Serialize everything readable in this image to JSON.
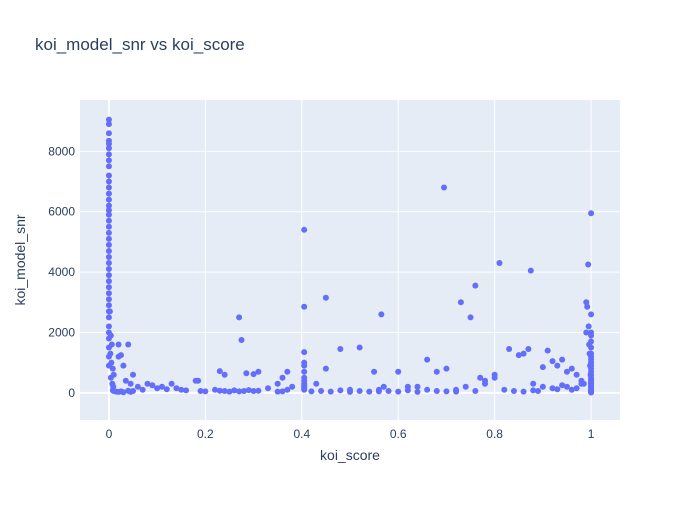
{
  "chart_data": {
    "type": "scatter",
    "title": "koi_model_snr vs koi_score",
    "xlabel": "koi_score",
    "ylabel": "koi_model_snr",
    "xlim": [
      -0.06,
      1.06
    ],
    "ylim": [
      -900,
      9700
    ],
    "xticks": [
      0,
      0.2,
      0.4,
      0.6,
      0.8,
      1
    ],
    "xtick_labels": [
      "0",
      "0.2",
      "0.4",
      "0.6",
      "0.8",
      "1"
    ],
    "yticks": [
      0,
      2000,
      4000,
      6000,
      8000
    ],
    "ytick_labels": [
      "0",
      "2000",
      "4000",
      "6000",
      "8000"
    ],
    "grid": true,
    "colors": {
      "marker": "#636efa",
      "plot_bg": "#e5ecf6",
      "grid": "#ffffff",
      "text": "#2a3f5f"
    },
    "series": [
      {
        "x": [
          0,
          0,
          0,
          0,
          0,
          0,
          0,
          0,
          0,
          0,
          0,
          0,
          0,
          0,
          0,
          0,
          0,
          0,
          0,
          0,
          0,
          0,
          0,
          0,
          0,
          0,
          0,
          0,
          0,
          0,
          0,
          0,
          0,
          0,
          0,
          0,
          0,
          0,
          0,
          0,
          0.002,
          0.004,
          0.006,
          0.003,
          0.005,
          0.008,
          0.01,
          0.004,
          0.007,
          0.009,
          0.02,
          0.02,
          0.025,
          0.03,
          0.035,
          0.04,
          0.045,
          0.05,
          0.06,
          0.07,
          0.08,
          0.09,
          0.1,
          0.11,
          0.12,
          0.13,
          0.14,
          0.15,
          0.16,
          0.18,
          0.19,
          0.2,
          0.22,
          0.23,
          0.24,
          0.25,
          0.26,
          0.27,
          0.28,
          0.29,
          0.3,
          0.31,
          0.33,
          0.35,
          0.36,
          0.37,
          0.38,
          0.008,
          0.01,
          0.015,
          0.02,
          0.025,
          0.03,
          0.04,
          0.045,
          0.05,
          0.27,
          0.275,
          0.23,
          0.24,
          0.285,
          0.3,
          0.31,
          0.35,
          0.36,
          0.37,
          0.185,
          0.405,
          0.405,
          0.405,
          0.405,
          0.405,
          0.405,
          0.405,
          0.405,
          0.405,
          0.405,
          0.405,
          0.405,
          0.405,
          0.43,
          0.45,
          0.45,
          0.48,
          0.5,
          0.52,
          0.55,
          0.56,
          0.565,
          0.57,
          0.6,
          0.62,
          0.64,
          0.66,
          0.68,
          0.695,
          0.7,
          0.72,
          0.73,
          0.75,
          0.76,
          0.77,
          0.78,
          0.8,
          0.81,
          0.83,
          0.85,
          0.42,
          0.44,
          0.46,
          0.48,
          0.5,
          0.52,
          0.54,
          0.56,
          0.58,
          0.6,
          0.62,
          0.64,
          0.66,
          0.68,
          0.7,
          0.72,
          0.74,
          0.76,
          0.78,
          0.8,
          0.82,
          0.84,
          0.86,
          0.88,
          0.86,
          0.87,
          0.875,
          0.9,
          0.91,
          0.92,
          0.93,
          0.94,
          0.95,
          0.96,
          0.97,
          0.98,
          0.985,
          0.99,
          0.99,
          0.992,
          0.994,
          0.995,
          0.996,
          0.997,
          0.998,
          0.999,
          1,
          1,
          1,
          1,
          1,
          1,
          1,
          1,
          1,
          1,
          1,
          1,
          1,
          1,
          1,
          1,
          1,
          1,
          1,
          1,
          1,
          1,
          1,
          1,
          1,
          1,
          1,
          1,
          0.9,
          0.92,
          0.94,
          0.96,
          0.98,
          0.88,
          0.89,
          0.93,
          0.95,
          0.97
        ],
        "y": [
          9050,
          8900,
          8600,
          8350,
          8250,
          8100,
          7900,
          7700,
          7500,
          7200,
          7000,
          6800,
          6600,
          6400,
          6200,
          6050,
          5900,
          5700,
          5500,
          5300,
          5100,
          4900,
          4700,
          4500,
          4300,
          4100,
          3900,
          3700,
          3500,
          3300,
          3100,
          2900,
          2700,
          2500,
          2200,
          2000,
          1800,
          1500,
          1200,
          900,
          2700,
          1900,
          1600,
          1300,
          1000,
          800,
          600,
          500,
          300,
          200,
          1600,
          1200,
          1250,
          900,
          400,
          1600,
          300,
          600,
          200,
          100,
          300,
          250,
          150,
          200,
          120,
          300,
          150,
          100,
          80,
          400,
          60,
          50,
          100,
          70,
          60,
          40,
          80,
          50,
          60,
          90,
          60,
          70,
          150,
          40,
          50,
          100,
          200,
          80,
          60,
          40,
          30,
          50,
          20,
          70,
          30,
          60,
          2500,
          1750,
          720,
          600,
          650,
          620,
          700,
          300,
          500,
          700,
          400,
          5400,
          2850,
          1350,
          1000,
          900,
          700,
          500,
          400,
          300,
          250,
          200,
          150,
          100,
          300,
          3150,
          800,
          1450,
          100,
          1500,
          700,
          100,
          2600,
          200,
          700,
          200,
          200,
          1100,
          700,
          6800,
          800,
          100,
          3000,
          2500,
          3550,
          500,
          400,
          600,
          4300,
          1450,
          1250,
          50,
          60,
          40,
          80,
          30,
          60,
          40,
          50,
          60,
          40,
          80,
          30,
          100,
          60,
          50,
          40,
          200,
          60,
          300,
          500,
          100,
          60,
          40,
          300,
          1300,
          1450,
          4050,
          850,
          1400,
          1050,
          900,
          1100,
          700,
          800,
          600,
          400,
          300,
          3000,
          2000,
          2850,
          4250,
          2200,
          1600,
          1300,
          900,
          600,
          5950,
          2600,
          2000,
          1900,
          1700,
          1500,
          1300,
          1200,
          1100,
          1000,
          900,
          800,
          700,
          600,
          500,
          450,
          400,
          350,
          300,
          250,
          200,
          150,
          100,
          80,
          60,
          40,
          20,
          10,
          200,
          150,
          250,
          100,
          300,
          80,
          60,
          120,
          200,
          150
        ]
      }
    ]
  }
}
